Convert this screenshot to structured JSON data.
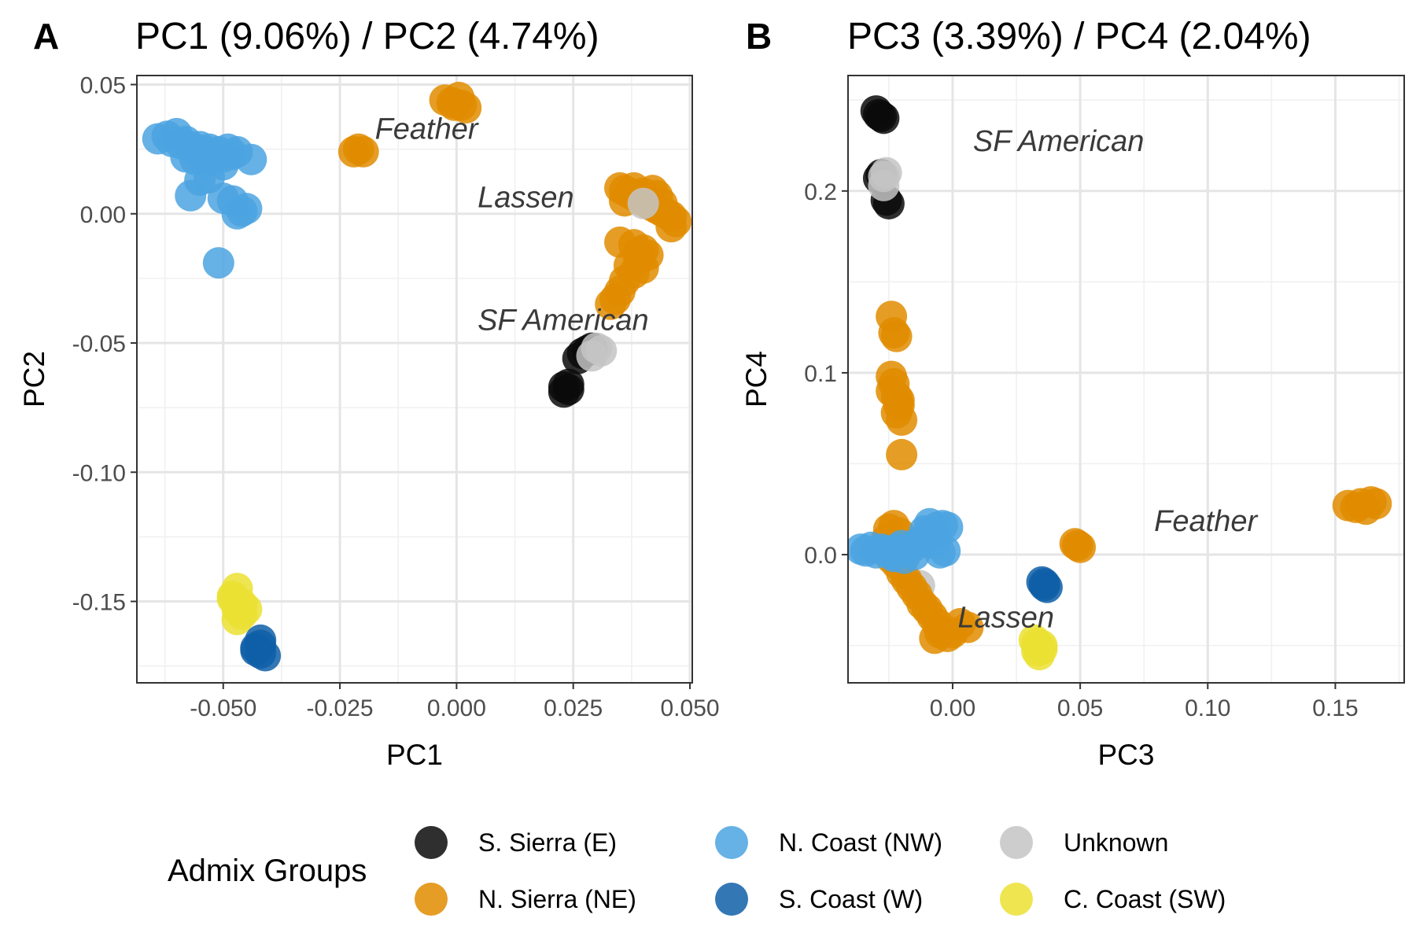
{
  "colors": {
    "S. Sierra (E)": "#0a0a0a",
    "N. Sierra (NE)": "#E08C00",
    "N. Coast (NW)": "#4BA3E0",
    "S. Coast (W)": "#0F5FA8",
    "Unknown": "#C4C4C4",
    "C. Coast (SW)": "#EBE033"
  },
  "legend": {
    "title": "Admix Groups",
    "items": [
      "S. Sierra (E)",
      "N. Sierra (NE)",
      "N. Coast (NW)",
      "S. Coast (W)",
      "Unknown",
      "C. Coast (SW)"
    ]
  },
  "chart_data": [
    {
      "type": "scatter",
      "tag": "A",
      "title": "PC1 (9.06%) / PC2 (4.74%)",
      "xlabel": "PC1",
      "ylabel": "PC2",
      "xlim": [
        -0.0685,
        0.0505
      ],
      "ylim": [
        -0.1815,
        0.0535
      ],
      "xticks": [
        -0.05,
        -0.025,
        0.0,
        0.025,
        0.05
      ],
      "xtick_labels": [
        "-0.050",
        "-0.025",
        "0.000",
        "0.025",
        "0.050"
      ],
      "yticks": [
        0.05,
        0.0,
        -0.05,
        -0.1,
        -0.15
      ],
      "ytick_labels": [
        "0.05",
        "0.00",
        "-0.05",
        "-0.10",
        "-0.15"
      ],
      "annotations": [
        {
          "text": "Feather",
          "x": -0.0175,
          "y": 0.029
        },
        {
          "text": "Lassen",
          "x": 0.0045,
          "y": 0.0025
        },
        {
          "text": "SF American",
          "x": 0.0045,
          "y": -0.045
        }
      ],
      "series": [
        {
          "name": "N. Coast (NW)",
          "points": [
            [
              -0.064,
              0.029
            ],
            [
              -0.062,
              0.03
            ],
            [
              -0.06,
              0.031
            ],
            [
              -0.061,
              0.028
            ],
            [
              -0.059,
              0.027
            ],
            [
              -0.058,
              0.028
            ],
            [
              -0.057,
              0.026
            ],
            [
              -0.056,
              0.025
            ],
            [
              -0.055,
              0.026
            ],
            [
              -0.054,
              0.024
            ],
            [
              -0.053,
              0.025
            ],
            [
              -0.052,
              0.023
            ],
            [
              -0.051,
              0.024
            ],
            [
              -0.05,
              0.022
            ],
            [
              -0.049,
              0.025
            ],
            [
              -0.048,
              0.023
            ],
            [
              -0.047,
              0.024
            ],
            [
              -0.058,
              0.022
            ],
            [
              -0.056,
              0.021
            ],
            [
              -0.054,
              0.02
            ],
            [
              -0.052,
              0.021
            ],
            [
              -0.05,
              0.019
            ],
            [
              -0.044,
              0.021
            ],
            [
              -0.055,
              0.013
            ],
            [
              -0.053,
              0.014
            ],
            [
              -0.057,
              0.007
            ],
            [
              -0.05,
              0.006
            ],
            [
              -0.048,
              0.005
            ],
            [
              -0.047,
              0.0
            ],
            [
              -0.046,
              0.001
            ],
            [
              -0.045,
              0.002
            ],
            [
              -0.051,
              -0.019
            ]
          ]
        },
        {
          "name": "N. Sierra (NE)",
          "points": [
            [
              -0.0025,
              0.044
            ],
            [
              -0.001,
              0.043
            ],
            [
              0.0005,
              0.045
            ],
            [
              0.001,
              0.042
            ],
            [
              0.002,
              0.041
            ],
            [
              -0.0005,
              0.042
            ],
            [
              -0.022,
              0.024
            ],
            [
              -0.021,
              0.025
            ],
            [
              -0.02,
              0.024
            ],
            [
              0.035,
              0.01
            ],
            [
              0.036,
              0.009
            ],
            [
              0.037,
              0.008
            ],
            [
              0.038,
              0.007
            ],
            [
              0.039,
              0.006
            ],
            [
              0.04,
              0.005
            ],
            [
              0.041,
              0.004
            ],
            [
              0.042,
              0.003
            ],
            [
              0.043,
              0.002
            ],
            [
              0.044,
              0.001
            ],
            [
              0.045,
              0.0
            ],
            [
              0.046,
              -0.001
            ],
            [
              0.047,
              -0.003
            ],
            [
              0.046,
              -0.005
            ],
            [
              0.044,
              0.004
            ],
            [
              0.043,
              0.007
            ],
            [
              0.042,
              0.009
            ],
            [
              0.04,
              0.008
            ],
            [
              0.038,
              0.01
            ],
            [
              0.036,
              0.005
            ],
            [
              0.035,
              -0.011
            ],
            [
              0.038,
              -0.012
            ],
            [
              0.04,
              -0.014
            ],
            [
              0.041,
              -0.016
            ],
            [
              0.039,
              -0.018
            ],
            [
              0.037,
              -0.02
            ],
            [
              0.038,
              -0.023
            ],
            [
              0.036,
              -0.026
            ],
            [
              0.035,
              -0.03
            ],
            [
              0.034,
              -0.033
            ],
            [
              0.033,
              -0.035
            ],
            [
              0.04,
              -0.021
            ],
            [
              0.039,
              -0.015
            ]
          ]
        },
        {
          "name": "S. Sierra (E)",
          "points": [
            [
              0.026,
              -0.056
            ],
            [
              0.027,
              -0.054
            ],
            [
              0.028,
              -0.053
            ],
            [
              0.029,
              -0.052
            ],
            [
              0.023,
              -0.067
            ],
            [
              0.024,
              -0.068
            ],
            [
              0.023,
              -0.069
            ],
            [
              0.024,
              -0.066
            ]
          ]
        },
        {
          "name": "Unknown",
          "points": [
            [
              0.04,
              0.004
            ],
            [
              0.029,
              -0.055
            ],
            [
              0.03,
              -0.052
            ],
            [
              0.031,
              -0.053
            ]
          ]
        },
        {
          "name": "C. Coast (SW)",
          "points": [
            [
              -0.047,
              -0.145
            ],
            [
              -0.048,
              -0.149
            ],
            [
              -0.046,
              -0.151
            ],
            [
              -0.047,
              -0.153
            ],
            [
              -0.046,
              -0.155
            ],
            [
              -0.045,
              -0.153
            ],
            [
              -0.047,
              -0.157
            ],
            [
              -0.048,
              -0.148
            ]
          ]
        },
        {
          "name": "S. Coast (W)",
          "points": [
            [
              -0.042,
              -0.165
            ],
            [
              -0.043,
              -0.168
            ],
            [
              -0.042,
              -0.17
            ],
            [
              -0.041,
              -0.171
            ],
            [
              -0.042,
              -0.167
            ],
            [
              -0.043,
              -0.169
            ]
          ]
        }
      ]
    },
    {
      "type": "scatter",
      "tag": "B",
      "title": "PC3 (3.39%) / PC4 (2.04%)",
      "xlabel": "PC3",
      "ylabel": "PC4",
      "xlim": [
        -0.041,
        0.177
      ],
      "ylim": [
        -0.0705,
        0.2635
      ],
      "xticks": [
        0.0,
        0.05,
        0.1,
        0.15
      ],
      "xtick_labels": [
        "0.00",
        "0.05",
        "0.10",
        "0.15"
      ],
      "yticks": [
        0.2,
        0.1,
        0.0
      ],
      "ytick_labels": [
        "0.2",
        "0.1",
        "0.0"
      ],
      "annotations": [
        {
          "text": "SF American",
          "x": 0.008,
          "y": 0.222
        },
        {
          "text": "Feather",
          "x": 0.079,
          "y": 0.013
        },
        {
          "text": "Lassen",
          "x": 0.002,
          "y": -0.04
        }
      ],
      "series": [
        {
          "name": "S. Sierra (E)",
          "points": [
            [
              -0.03,
              0.244
            ],
            [
              -0.029,
              0.242
            ],
            [
              -0.028,
              0.241
            ],
            [
              -0.027,
              0.24
            ],
            [
              -0.029,
              0.207
            ],
            [
              -0.028,
              0.209
            ],
            [
              -0.026,
              0.195
            ],
            [
              -0.025,
              0.193
            ]
          ]
        },
        {
          "name": "Unknown",
          "points": [
            [
              -0.027,
              0.208
            ],
            [
              -0.026,
              0.21
            ],
            [
              -0.027,
              0.203
            ],
            [
              -0.013,
              -0.017
            ]
          ]
        },
        {
          "name": "N. Sierra (NE)",
          "points": [
            [
              -0.024,
              0.131
            ],
            [
              -0.023,
              0.122
            ],
            [
              -0.022,
              0.12
            ],
            [
              -0.024,
              0.098
            ],
            [
              -0.023,
              0.094
            ],
            [
              -0.024,
              0.09
            ],
            [
              -0.022,
              0.087
            ],
            [
              -0.021,
              0.085
            ],
            [
              -0.021,
              0.082
            ],
            [
              -0.022,
              0.078
            ],
            [
              -0.02,
              0.074
            ],
            [
              -0.02,
              0.055
            ],
            [
              -0.025,
              0.014
            ],
            [
              -0.023,
              0.016
            ],
            [
              -0.021,
              0.012
            ],
            [
              -0.026,
              0.008
            ],
            [
              -0.024,
              -0.002
            ],
            [
              -0.022,
              -0.005
            ],
            [
              -0.02,
              -0.01
            ],
            [
              -0.018,
              -0.014
            ],
            [
              -0.016,
              -0.018
            ],
            [
              -0.014,
              -0.022
            ],
            [
              -0.012,
              -0.027
            ],
            [
              -0.01,
              -0.03
            ],
            [
              -0.008,
              -0.034
            ],
            [
              -0.006,
              -0.038
            ],
            [
              -0.004,
              -0.042
            ],
            [
              -0.002,
              -0.045
            ],
            [
              0.0,
              -0.043
            ],
            [
              0.003,
              -0.038
            ],
            [
              0.006,
              -0.04
            ],
            [
              -0.007,
              -0.046
            ],
            [
              -0.005,
              -0.043
            ],
            [
              0.048,
              0.006
            ],
            [
              0.049,
              0.005
            ],
            [
              0.05,
              0.004
            ],
            [
              0.155,
              0.027
            ],
            [
              0.158,
              0.026
            ],
            [
              0.16,
              0.028
            ],
            [
              0.162,
              0.025
            ],
            [
              0.164,
              0.029
            ],
            [
              0.166,
              0.028
            ]
          ]
        },
        {
          "name": "N. Coast (NW)",
          "points": [
            [
              -0.036,
              0.003
            ],
            [
              -0.034,
              0.002
            ],
            [
              -0.032,
              0.004
            ],
            [
              -0.03,
              0.001
            ],
            [
              -0.028,
              0.003
            ],
            [
              -0.026,
              0.002
            ],
            [
              -0.024,
              0.0
            ],
            [
              -0.022,
              0.003
            ],
            [
              -0.02,
              0.005
            ],
            [
              -0.018,
              0.002
            ],
            [
              -0.016,
              0.004
            ],
            [
              -0.014,
              0.006
            ],
            [
              -0.012,
              0.008
            ],
            [
              -0.01,
              0.01
            ],
            [
              -0.008,
              0.012
            ],
            [
              -0.006,
              0.015
            ],
            [
              -0.009,
              0.017
            ],
            [
              -0.004,
              0.016
            ],
            [
              -0.011,
              0.013
            ],
            [
              -0.007,
              0.006
            ],
            [
              -0.002,
              0.015
            ],
            [
              -0.003,
              0.002
            ],
            [
              -0.005,
              0.001
            ],
            [
              -0.015,
              0.0
            ],
            [
              -0.019,
              -0.002
            ],
            [
              -0.023,
              -0.001
            ]
          ]
        },
        {
          "name": "S. Coast (W)",
          "points": [
            [
              0.035,
              -0.015
            ],
            [
              0.036,
              -0.017
            ],
            [
              0.037,
              -0.018
            ],
            [
              0.036,
              -0.016
            ]
          ]
        },
        {
          "name": "C. Coast (SW)",
          "points": [
            [
              0.032,
              -0.047
            ],
            [
              0.033,
              -0.049
            ],
            [
              0.034,
              -0.051
            ],
            [
              0.035,
              -0.05
            ],
            [
              0.033,
              -0.053
            ],
            [
              0.034,
              -0.055
            ],
            [
              0.035,
              -0.052
            ]
          ]
        }
      ]
    }
  ]
}
